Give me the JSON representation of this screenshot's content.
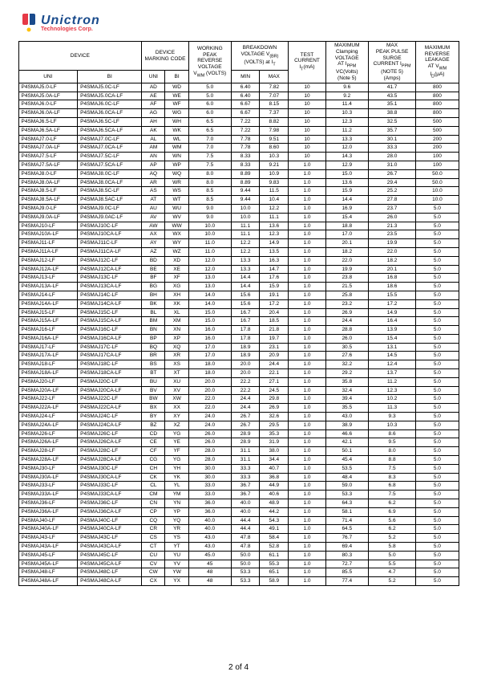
{
  "logo": {
    "name": "Unictron",
    "sub": "Technologies Corp."
  },
  "headers": {
    "device": "DEVICE",
    "marking": "DEVICE MARKING CODE",
    "working": "WORKING PEAK REVERSE VOLTAGE V_WM (VOLTS)",
    "breakdown": "BREAKDOWN VOLTAGE V_(BR) (VOLTS) at I_T",
    "test": "TEST CURRENT I_T(mA)",
    "clamp": "MAXIMUM Clamping VOLTAGE AT I_PPM VC(Volts) (Note 5)",
    "peak": "MAX PEAK PULSE SURGE CURRENT I_PPM (NOTE 5) (Amps)",
    "leak": "MAXIMUM REVERSE LEAKAGE AT V_WM I_D(μA)",
    "uni": "UNI",
    "bi": "BI",
    "min": "MIN",
    "max": "MAX"
  },
  "rows": [
    [
      "P4SMAJ5.0-LF",
      "P4SMAJ5.0C-LF",
      "AD",
      "WD",
      "5.0",
      "6.40",
      "7.82",
      "10",
      "9.6",
      "41.7",
      "800"
    ],
    [
      "P4SMAJ5.0A-LF",
      "P4SMAJ5.0CA-LF",
      "AE",
      "WE",
      "5.0",
      "6.40",
      "7.07",
      "10",
      "9.2",
      "43.5",
      "800"
    ],
    [
      "P4SMAJ6.0-LF",
      "P4SMAJ6.0C-LF",
      "AF",
      "WF",
      "6.0",
      "6.67",
      "8.15",
      "10",
      "11.4",
      "35.1",
      "800"
    ],
    [
      "P4SMAJ6.0A-LF",
      "P4SMAJ6.0CA-LF",
      "AG",
      "WG",
      "6.0",
      "6.67",
      "7.37",
      "10",
      "10.3",
      "38.8",
      "800"
    ],
    [
      "P4SMAJ6.5-LF",
      "P4SMAJ6.5C-LF",
      "AH",
      "WH",
      "6.5",
      "7.22",
      "8.82",
      "10",
      "12.3",
      "32.5",
      "500"
    ],
    [
      "P4SMAJ6.5A-LF",
      "P4SMAJ6.5CA-LF",
      "AK",
      "WK",
      "6.5",
      "7.22",
      "7.98",
      "10",
      "11.2",
      "35.7",
      "500"
    ],
    [
      "P4SMAJ7.0-LF",
      "P4SMAJ7.0C-LF",
      "AL",
      "WL",
      "7.0",
      "7.78",
      "9.51",
      "10",
      "13.3",
      "30.1",
      "200"
    ],
    [
      "P4SMAJ7.0A-LF",
      "P4SMAJ7.0CA-LF",
      "AM",
      "WM",
      "7.0",
      "7.78",
      "8.60",
      "10",
      "12.0",
      "33.3",
      "200"
    ],
    [
      "P4SMAJ7.5-LF",
      "P4SMAJ7.5C-LF",
      "AN",
      "WN",
      "7.5",
      "8.33",
      "10.3",
      "10",
      "14.3",
      "28.0",
      "100"
    ],
    [
      "P4SMAJ7.5A-LF",
      "P4SMAJ7.5CA-LF",
      "AP",
      "WP",
      "7.5",
      "8.33",
      "9.21",
      "1.0",
      "12.9",
      "31.0",
      "100"
    ],
    [
      "P4SMAJ8.0-LF",
      "P4SMAJ8.0C-LF",
      "AQ",
      "WQ",
      "8.0",
      "8.89",
      "10.9",
      "1.0",
      "15.0",
      "26.7",
      "50.0"
    ],
    [
      "P4SMAJ8.0A-LF",
      "P4SMAJ8.0CA-LF",
      "AR",
      "WR",
      "8.0",
      "8.89",
      "9.83",
      "1.0",
      "13.6",
      "29.4",
      "50.0"
    ],
    [
      "P4SMAJ8.5-LF",
      "P4SMAJ8.5C-LF",
      "AS",
      "WS",
      "8.5",
      "9.44",
      "11.5",
      "1.0",
      "15.9",
      "25.2",
      "10.0"
    ],
    [
      "P4SMAJ8.5A-LF",
      "P4SMAJ8.5AC-LF",
      "AT",
      "WT",
      "8.5",
      "9.44",
      "10.4",
      "1.0",
      "14.4",
      "27.8",
      "10.0"
    ],
    [
      "P4SMAJ9.0-LF",
      "P4SMAJ9.0C-LF",
      "AU",
      "WU",
      "9.0",
      "10.0",
      "12.2",
      "1.0",
      "16.9",
      "23.7",
      "5.0"
    ],
    [
      "P4SMAJ9.0A-LF",
      "P4SMAJ9.0AC-LF",
      "AV",
      "WV",
      "9.0",
      "10.0",
      "11.1",
      "1.0",
      "15.4",
      "26.0",
      "5.0"
    ],
    [
      "P4SMAJ10-LF",
      "P4SMAJ10C-LF",
      "AW",
      "WW",
      "10.0",
      "11.1",
      "13.6",
      "1.0",
      "18.8",
      "21.3",
      "5.0"
    ],
    [
      "P4SMAJ10A-LF",
      "P4SMAJ10CA-LF",
      "AX",
      "WX",
      "10.0",
      "11.1",
      "12.3",
      "1.0",
      "17.0",
      "23.5",
      "5.0"
    ],
    [
      "P4SMAJ11-LF",
      "P4SMAJ11C-LF",
      "AY",
      "WY",
      "11.0",
      "12.2",
      "14.9",
      "1.0",
      "20.1",
      "19.9",
      "5.0"
    ],
    [
      "P4SMAJ11A-LF",
      "P4SMAJ11CA-LF",
      "AZ",
      "WZ",
      "11.0",
      "12.2",
      "13.5",
      "1.0",
      "18.2",
      "22.0",
      "5.0"
    ],
    [
      "P4SMAJ12-LF",
      "P4SMAJ12C-LF",
      "BD",
      "XD",
      "12.0",
      "13.3",
      "16.3",
      "1.0",
      "22.0",
      "18.2",
      "5.0"
    ],
    [
      "P4SMAJ12A-LF",
      "P4SMAJ12CA-LF",
      "BE",
      "XE",
      "12.0",
      "13.3",
      "14.7",
      "1.0",
      "19.9",
      "20.1",
      "5.0"
    ],
    [
      "P4SMAJ13-LF",
      "P4SMAJ13C-LF",
      "BF",
      "XF",
      "13.0",
      "14.4",
      "17.6",
      "1.0",
      "23.8",
      "16.8",
      "5.0"
    ],
    [
      "P4SMAJ13A-LF",
      "P4SMAJ13CA-LF",
      "BG",
      "XG",
      "13.0",
      "14.4",
      "15.9",
      "1.0",
      "21.5",
      "18.6",
      "5.0"
    ],
    [
      "P4SMAJ14-LF",
      "P4SMAJ14C-LF",
      "BH",
      "XH",
      "14.0",
      "15.6",
      "19.1",
      "1.0",
      "25.8",
      "15.5",
      "5.0"
    ],
    [
      "P4SMAJ14A-LF",
      "P4SMAJ14CA-LF",
      "BK",
      "XK",
      "14.0",
      "15.6",
      "17.2",
      "1.0",
      "23.2",
      "17.2",
      "5.0"
    ],
    [
      "P4SMAJ15-LF",
      "P4SMAJ15C-LF",
      "BL",
      "XL",
      "15.0",
      "16.7",
      "20.4",
      "1.0",
      "26.9",
      "14.9",
      "5.0"
    ],
    [
      "P4SMAJ15A-LF",
      "P4SMAJ15CA-LF",
      "BM",
      "XM",
      "15.0",
      "16.7",
      "18.5",
      "1.0",
      "24.4",
      "16.4",
      "5.0"
    ],
    [
      "P4SMAJ16-LF",
      "P4SMAJ16C-LF",
      "BN",
      "XN",
      "16.0",
      "17.8",
      "21.8",
      "1.0",
      "28.8",
      "13.9",
      "5.0"
    ],
    [
      "P4SMAJ16A-LF",
      "P4SMAJ16CA-LF",
      "BP",
      "XP",
      "16.0",
      "17.8",
      "19.7",
      "1.0",
      "26.0",
      "15.4",
      "5.0"
    ],
    [
      "P4SMAJ17-LF",
      "P4SMAJ17C-LF",
      "BQ",
      "XQ",
      "17.0",
      "18.9",
      "23.1",
      "1.0",
      "30.5",
      "13.1",
      "5.0"
    ],
    [
      "P4SMAJ17A-LF",
      "P4SMAJ17CA-LF",
      "BR",
      "XR",
      "17.0",
      "18.9",
      "20.9",
      "1.0",
      "27.6",
      "14.5",
      "5.0"
    ],
    [
      "P4SMAJ18-LF",
      "P4SMAJ18C-LF",
      "BS",
      "XS",
      "18.0",
      "20.0",
      "24.4",
      "1.0",
      "32.2",
      "12.4",
      "5.0"
    ],
    [
      "P4SMAJ18A-LF",
      "P4SMAJ18CA-LF",
      "BT",
      "XT",
      "18.0",
      "20.0",
      "22.1",
      "1.0",
      "29.2",
      "13.7",
      "5.0"
    ],
    [
      "P4SMAJ20-LF",
      "P4SMAJ20C-LF",
      "BU",
      "XU",
      "20.0",
      "22.2",
      "27.1",
      "1.0",
      "35.8",
      "11.2",
      "5.0"
    ],
    [
      "P4SMAJ20A-LF",
      "P4SMAJ20CA-LF",
      "BV",
      "XV",
      "20.0",
      "22.2",
      "24.5",
      "1.0",
      "32.4",
      "12.3",
      "5.0"
    ],
    [
      "P4SMAJ22-LF",
      "P4SMAJ22C-LF",
      "BW",
      "XW",
      "22.0",
      "24.4",
      "29.8",
      "1.0",
      "39.4",
      "10.2",
      "5.0"
    ],
    [
      "P4SMAJ22A-LF",
      "P4SMAJ22CA-LF",
      "BX",
      "XX",
      "22.0",
      "24.4",
      "26.9",
      "1.0",
      "35.5",
      "11.3",
      "5.0"
    ],
    [
      "P4SMAJ24-LF",
      "P4SMAJ24C-LF",
      "BY",
      "XY",
      "24.0",
      "26.7",
      "32.6",
      "1.0",
      "43.0",
      "9.3",
      "5.0"
    ],
    [
      "P4SMAJ24A-LF",
      "P4SMAJ24CA-LF",
      "BZ",
      "XZ",
      "24.0",
      "26.7",
      "29.5",
      "1.0",
      "38.9",
      "10.3",
      "5.0"
    ],
    [
      "P4SMAJ26-LF",
      "P4SMAJ26C-LF",
      "CD",
      "YG",
      "26.0",
      "28.9",
      "35.3",
      "1.0",
      "46.6",
      "8.6",
      "5.0"
    ],
    [
      "P4SMAJ26A-LF",
      "P4SMAJ26CA-LF",
      "CE",
      "YE",
      "26.0",
      "28.9",
      "31.9",
      "1.0",
      "42.1",
      "9.5",
      "5.0"
    ],
    [
      "P4SMAJ28-LF",
      "P4SMAJ28C-LF",
      "CF",
      "YF",
      "28.0",
      "31.1",
      "38.0",
      "1.0",
      "50.1",
      "8.0",
      "5.0"
    ],
    [
      "P4SMAJ28A-LF",
      "P4SMAJ28CA-LF",
      "CG",
      "YG",
      "28.0",
      "31.1",
      "34.4",
      "1.0",
      "45.4",
      "8.8",
      "5.0"
    ],
    [
      "P4SMAJ30-LF",
      "P4SMAJ30C-LF",
      "CH",
      "YH",
      "30.0",
      "33.3",
      "40.7",
      "1.0",
      "53.5",
      "7.5",
      "5.0"
    ],
    [
      "P4SMAJ30A-LF",
      "P4SMAJ30CA-LF",
      "CK",
      "YK",
      "30.0",
      "33.3",
      "36.8",
      "1.0",
      "48.4",
      "8.3",
      "5.0"
    ],
    [
      "P4SMAJ33-LF",
      "P4SMAJ33C-LF",
      "CL",
      "YL",
      "33.0",
      "36.7",
      "44.9",
      "1.0",
      "59.0",
      "6.8",
      "5.0"
    ],
    [
      "P4SMAJ33A-LF",
      "P4SMAJ33CA-LF",
      "CM",
      "YM",
      "33.0",
      "36.7",
      "40.6",
      "1.0",
      "53.3",
      "7.5",
      "5.0"
    ],
    [
      "P4SMAJ36-LF",
      "P4SMAJ36C-LF",
      "CN",
      "YN",
      "36.0",
      "40.0",
      "48.9",
      "1.0",
      "64.3",
      "6.2",
      "5.0"
    ],
    [
      "P4SMAJ36A-LF",
      "P4SMAJ36CA-LF",
      "CP",
      "YP",
      "36.0",
      "40.0",
      "44.2",
      "1.0",
      "58.1",
      "6.9",
      "5.0"
    ],
    [
      "P4SMAJ40-LF",
      "P4SMAJ40C-LF",
      "CQ",
      "YQ",
      "40.0",
      "44.4",
      "54.3",
      "1.0",
      "71.4",
      "5.6",
      "5.0"
    ],
    [
      "P4SMAJ40A-LF",
      "P4SMAJ40CA-LF",
      "CR",
      "YR",
      "40.0",
      "44.4",
      "49.1",
      "1.0",
      "64.5",
      "6.2",
      "5.0"
    ],
    [
      "P4SMAJ43-LF",
      "P4SMAJ43C-LF",
      "CS",
      "YS",
      "43.0",
      "47.8",
      "58.4",
      "1.0",
      "76.7",
      "5.2",
      "5.0"
    ],
    [
      "P4SMAJ43A-LF",
      "P4SMAJ43CA-LF",
      "CT",
      "YT",
      "43.0",
      "47.8",
      "52.8",
      "1.0",
      "69.4",
      "5.8",
      "5.0"
    ],
    [
      "P4SMAJ45-LF",
      "P4SMAJ45C-LF",
      "CU",
      "YU",
      "45.0",
      "50.0",
      "61.1",
      "1.0",
      "80.3",
      "5.0",
      "5.0"
    ],
    [
      "P4SMAJ45A-LF",
      "P4SMAJ45CA-LF",
      "CV",
      "YV",
      "45",
      "50.0",
      "55.3",
      "1.0",
      "72.7",
      "5.5",
      "5.0"
    ],
    [
      "P4SMAJ48-LF",
      "P4SMAJ48C-LF",
      "CW",
      "YW",
      "48",
      "53.3",
      "65.1",
      "1.0",
      "85.5",
      "4.7",
      "5.0"
    ],
    [
      "P4SMAJ48A-LF",
      "P4SMAJ48CA-LF",
      "CX",
      "YX",
      "48",
      "53.3",
      "58.9",
      "1.0",
      "77.4",
      "5.2",
      "5.0"
    ]
  ],
  "pageNum": "2 of 4"
}
